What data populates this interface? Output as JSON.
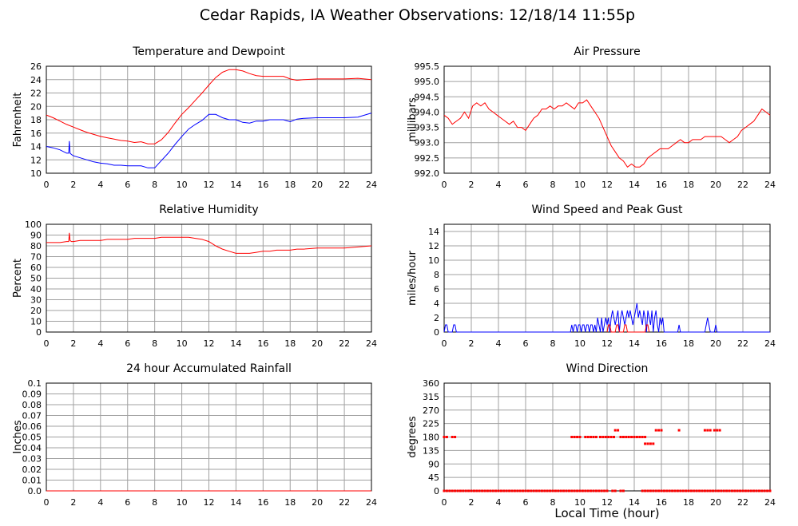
{
  "title": "Cedar Rapids, IA Weather Observations: 12/18/14 11:55p",
  "xlabel": "Local Time (hour)",
  "colors": {
    "red": "#ff0000",
    "blue": "#0000ff",
    "grid": "#a0a0a0"
  },
  "chart_data": [
    {
      "type": "line",
      "title": "Temperature and Dewpoint",
      "ylabel": "Fahrenheit",
      "xlim": [
        0,
        24
      ],
      "ylim": [
        10,
        26
      ],
      "xticks": [
        0,
        2,
        4,
        6,
        8,
        10,
        12,
        14,
        16,
        18,
        20,
        22,
        24
      ],
      "yticks": [
        10,
        12,
        14,
        16,
        18,
        20,
        22,
        24,
        26
      ],
      "grid": true,
      "series": [
        {
          "color": "#ff0000",
          "style": "line",
          "x": [
            0,
            0.5,
            1,
            1.5,
            2,
            2.5,
            3,
            3.5,
            4,
            4.5,
            5,
            5.5,
            6,
            6.5,
            7,
            7.5,
            8,
            8.5,
            9,
            9.5,
            10,
            10.5,
            11,
            11.5,
            12,
            12.5,
            13,
            13.5,
            14,
            14.5,
            15,
            15.5,
            16,
            16.5,
            17,
            17.5,
            18,
            18.5,
            19,
            20,
            21,
            22,
            23,
            24
          ],
          "y": [
            18.7,
            18.3,
            17.8,
            17.3,
            16.9,
            16.5,
            16.1,
            15.8,
            15.5,
            15.3,
            15.1,
            14.9,
            14.8,
            14.6,
            14.7,
            14.4,
            14.4,
            15.0,
            16.1,
            17.5,
            18.8,
            19.8,
            20.9,
            22.0,
            23.2,
            24.3,
            25.1,
            25.5,
            25.5,
            25.3,
            24.9,
            24.6,
            24.5,
            24.5,
            24.5,
            24.5,
            24.1,
            23.9,
            24.0,
            24.1,
            24.1,
            24.1,
            24.2,
            24.0
          ]
        },
        {
          "color": "#0000ff",
          "style": "line",
          "x": [
            0,
            0.5,
            1,
            1.5,
            1.65,
            1.7,
            1.75,
            1.85,
            2,
            2.5,
            3,
            3.5,
            4,
            4.5,
            5,
            5.5,
            6,
            6.5,
            7,
            7.5,
            8,
            8.5,
            9,
            9.5,
            10,
            10.5,
            11,
            11.5,
            12,
            12.5,
            13,
            13.5,
            14,
            14.5,
            15,
            15.5,
            16,
            16.5,
            17,
            17.5,
            18,
            18.5,
            19,
            20,
            21,
            22,
            23,
            24
          ],
          "y": [
            14.0,
            13.8,
            13.5,
            13.0,
            13.0,
            14.8,
            13.0,
            12.8,
            12.6,
            12.3,
            12.0,
            11.7,
            11.5,
            11.4,
            11.2,
            11.2,
            11.1,
            11.1,
            11.1,
            10.8,
            10.8,
            11.9,
            13.0,
            14.3,
            15.5,
            16.6,
            17.3,
            17.9,
            18.8,
            18.8,
            18.3,
            18.0,
            18.0,
            17.6,
            17.5,
            17.8,
            17.8,
            18.0,
            18.0,
            18.0,
            17.7,
            18.1,
            18.2,
            18.3,
            18.3,
            18.3,
            18.4,
            19.0
          ]
        }
      ]
    },
    {
      "type": "line",
      "title": "Air Pressure",
      "ylabel": "millibars",
      "xlim": [
        0,
        24
      ],
      "ylim": [
        992.0,
        995.5
      ],
      "xticks": [
        0,
        2,
        4,
        6,
        8,
        10,
        12,
        14,
        16,
        18,
        20,
        22,
        24
      ],
      "yticks": [
        992.0,
        992.5,
        993.0,
        993.5,
        994.0,
        994.5,
        995.0,
        995.5
      ],
      "grid": true,
      "series": [
        {
          "color": "#ff0000",
          "style": "line",
          "x": [
            0,
            0.3,
            0.6,
            0.9,
            1.2,
            1.5,
            1.8,
            2.1,
            2.4,
            2.7,
            3.0,
            3.3,
            3.6,
            3.9,
            4.2,
            4.5,
            4.8,
            5.1,
            5.4,
            5.7,
            6.0,
            6.3,
            6.6,
            6.9,
            7.2,
            7.5,
            7.8,
            8.1,
            8.4,
            8.7,
            9.0,
            9.3,
            9.6,
            9.9,
            10.2,
            10.5,
            10.8,
            11.1,
            11.4,
            11.7,
            12.0,
            12.3,
            12.6,
            12.9,
            13.2,
            13.5,
            13.8,
            14.1,
            14.4,
            14.7,
            15.0,
            15.3,
            15.6,
            15.9,
            16.2,
            16.5,
            16.8,
            17.1,
            17.4,
            17.7,
            18.0,
            18.3,
            18.6,
            18.9,
            19.2,
            19.5,
            19.8,
            20.1,
            20.4,
            20.7,
            21.0,
            21.3,
            21.6,
            21.9,
            22.2,
            22.5,
            22.8,
            23.1,
            23.4,
            23.7,
            24.0
          ],
          "y": [
            993.9,
            993.8,
            993.6,
            993.7,
            993.8,
            994.0,
            993.8,
            994.2,
            994.3,
            994.2,
            994.3,
            994.1,
            994.0,
            993.9,
            993.8,
            993.7,
            993.6,
            993.7,
            993.5,
            993.5,
            993.4,
            993.6,
            993.8,
            993.9,
            994.1,
            994.1,
            994.2,
            994.1,
            994.2,
            994.2,
            994.3,
            994.2,
            994.1,
            994.3,
            994.3,
            994.4,
            994.2,
            994.0,
            993.8,
            993.5,
            993.2,
            992.9,
            992.7,
            992.5,
            992.4,
            992.2,
            992.3,
            992.2,
            992.2,
            992.3,
            992.5,
            992.6,
            992.7,
            992.8,
            992.8,
            992.8,
            992.9,
            993.0,
            993.1,
            993.0,
            993.0,
            993.1,
            993.1,
            993.1,
            993.2,
            993.2,
            993.2,
            993.2,
            993.2,
            993.1,
            993.0,
            993.1,
            993.2,
            993.4,
            993.5,
            993.6,
            993.7,
            993.9,
            994.1,
            994.0,
            993.9
          ]
        }
      ]
    },
    {
      "type": "line",
      "title": "Relative Humidity",
      "ylabel": "Percent",
      "xlim": [
        0,
        24
      ],
      "ylim": [
        0,
        100
      ],
      "xticks": [
        0,
        2,
        4,
        6,
        8,
        10,
        12,
        14,
        16,
        18,
        20,
        22,
        24
      ],
      "yticks": [
        0,
        10,
        20,
        30,
        40,
        50,
        60,
        70,
        80,
        90,
        100
      ],
      "grid": true,
      "series": [
        {
          "color": "#ff0000",
          "style": "line",
          "x": [
            0,
            0.5,
            1,
            1.5,
            1.65,
            1.7,
            1.75,
            1.85,
            2,
            2.5,
            3,
            3.5,
            4,
            4.5,
            5,
            5.5,
            6,
            6.5,
            7,
            7.5,
            8,
            8.5,
            9,
            9.5,
            10,
            10.5,
            11,
            11.5,
            12,
            12.5,
            13,
            13.5,
            14,
            14.5,
            15,
            15.5,
            16,
            16.5,
            17,
            17.5,
            18,
            18.5,
            19,
            20,
            21,
            22,
            23,
            24
          ],
          "y": [
            83,
            83,
            83,
            84,
            84,
            92,
            85,
            84,
            84,
            85,
            85,
            85,
            85,
            86,
            86,
            86,
            86,
            87,
            87,
            87,
            87,
            88,
            88,
            88,
            88,
            88,
            87,
            86,
            84,
            80,
            77,
            75,
            73,
            73,
            73,
            74,
            75,
            75,
            76,
            76,
            76,
            77,
            77,
            78,
            78,
            78,
            79,
            80
          ]
        }
      ]
    },
    {
      "type": "line",
      "title": "Wind Speed and Peak Gust",
      "ylabel": "miles/hour",
      "xlim": [
        0,
        24
      ],
      "ylim": [
        0,
        15
      ],
      "xticks": [
        0,
        2,
        4,
        6,
        8,
        10,
        12,
        14,
        16,
        18,
        20,
        22,
        24
      ],
      "yticks": [
        0,
        2,
        4,
        6,
        8,
        10,
        12,
        14
      ],
      "grid": true,
      "series": [
        {
          "color": "#0000ff",
          "style": "line",
          "x": [
            0,
            0.1,
            0.2,
            0.3,
            0.6,
            0.7,
            0.8,
            0.9,
            9.3,
            9.4,
            9.5,
            9.6,
            9.7,
            9.8,
            9.9,
            10.0,
            10.1,
            10.2,
            10.3,
            10.4,
            10.5,
            10.6,
            10.7,
            10.8,
            10.9,
            11.0,
            11.1,
            11.2,
            11.3,
            11.4,
            11.5,
            11.6,
            11.7,
            11.8,
            11.9,
            12.0,
            12.1,
            12.2,
            12.3,
            12.4,
            12.5,
            12.6,
            12.7,
            12.8,
            12.9,
            13.0,
            13.1,
            13.2,
            13.3,
            13.4,
            13.5,
            13.6,
            13.7,
            13.8,
            13.9,
            14.0,
            14.1,
            14.2,
            14.3,
            14.4,
            14.5,
            14.6,
            14.7,
            14.8,
            14.9,
            15.0,
            15.1,
            15.2,
            15.3,
            15.4,
            15.5,
            15.6,
            15.7,
            15.8,
            15.9,
            16.0,
            16.1,
            16.2,
            17.2,
            17.3,
            17.4,
            19.2,
            19.3,
            19.4,
            19.5,
            19.6,
            19.9,
            20.0,
            20.1,
            20.2,
            24
          ],
          "y": [
            0,
            1,
            1,
            0,
            0,
            1,
            1,
            0,
            0,
            1,
            0,
            1,
            1,
            0,
            1,
            1,
            0,
            1,
            1,
            0,
            1,
            1,
            0,
            1,
            1,
            0,
            1,
            0,
            2,
            1,
            0,
            2,
            0,
            1,
            2,
            1,
            2,
            0,
            2,
            3,
            2,
            1,
            2,
            3,
            0,
            2,
            3,
            2,
            1,
            2,
            3,
            2,
            3,
            2,
            1,
            2,
            3,
            4,
            2,
            3,
            2,
            1,
            3,
            2,
            0,
            3,
            2,
            1,
            3,
            0,
            2,
            3,
            1,
            0,
            2,
            1,
            2,
            0,
            0,
            1,
            0,
            0,
            1,
            2,
            1,
            0,
            0,
            1,
            0,
            0,
            0
          ]
        },
        {
          "color": "#ff0000",
          "style": "line",
          "x": [
            12.0,
            12.1,
            12.2,
            12.3,
            12.6,
            12.7,
            12.8,
            12.9,
            13.2,
            13.3,
            13.4,
            13.5,
            14.8,
            14.9,
            15.0,
            15.1
          ],
          "y": [
            0,
            1,
            1,
            0,
            0,
            1,
            1,
            0,
            0,
            1,
            1,
            0,
            0,
            1,
            1,
            0
          ]
        }
      ]
    },
    {
      "type": "line",
      "title": "24 hour Accumulated Rainfall",
      "ylabel": "Inches",
      "xlim": [
        0,
        24
      ],
      "ylim": [
        0,
        0.1
      ],
      "xticks": [
        0,
        2,
        4,
        6,
        8,
        10,
        12,
        14,
        16,
        18,
        20,
        22,
        24
      ],
      "yticks": [
        0.0,
        0.01,
        0.02,
        0.03,
        0.04,
        0.05,
        0.06,
        0.07,
        0.08,
        0.09,
        0.1
      ],
      "ytick_labels": [
        "0.0",
        "0.01",
        "0.02",
        "0.03",
        "0.04",
        "0.05",
        "0.06",
        "0.07",
        "0.08",
        "0.09",
        "0.1"
      ],
      "grid": true,
      "series": [
        {
          "color": "#ff0000",
          "style": "line",
          "x": [
            0,
            24
          ],
          "y": [
            0,
            0
          ]
        }
      ]
    },
    {
      "type": "scatter",
      "title": "Wind Direction",
      "ylabel": "degrees",
      "xlim": [
        0,
        24
      ],
      "ylim": [
        0,
        360
      ],
      "xticks": [
        0,
        2,
        4,
        6,
        8,
        10,
        12,
        14,
        16,
        18,
        20,
        22,
        24
      ],
      "yticks": [
        0,
        45,
        90,
        135,
        180,
        225,
        270,
        315,
        360
      ],
      "grid": true,
      "series": [
        {
          "color": "#ff0000",
          "style": "scatter",
          "segments": [
            {
              "y": 0,
              "from": 0,
              "to": 12.0
            },
            {
              "y": 0,
              "from": 12.4,
              "to": 12.6
            },
            {
              "y": 0,
              "from": 13.0,
              "to": 13.3
            },
            {
              "y": 0,
              "from": 14.6,
              "to": 24.0
            },
            {
              "y": 180,
              "from": 0.0,
              "to": 0.2
            },
            {
              "y": 180,
              "from": 0.6,
              "to": 0.8
            },
            {
              "y": 180,
              "from": 9.4,
              "to": 10.0
            },
            {
              "y": 180,
              "from": 10.4,
              "to": 11.3
            },
            {
              "y": 180,
              "from": 11.5,
              "to": 12.5
            },
            {
              "y": 180,
              "from": 13.0,
              "to": 14.8
            },
            {
              "y": 157.5,
              "from": 14.8,
              "to": 15.5
            },
            {
              "y": 202.5,
              "from": 12.6,
              "to": 12.8
            },
            {
              "y": 202.5,
              "from": 15.6,
              "to": 16.1
            },
            {
              "y": 202.5,
              "from": 17.3,
              "to": 17.3
            },
            {
              "y": 202.5,
              "from": 19.2,
              "to": 19.6
            },
            {
              "y": 202.5,
              "from": 19.9,
              "to": 20.3
            }
          ]
        }
      ]
    }
  ]
}
